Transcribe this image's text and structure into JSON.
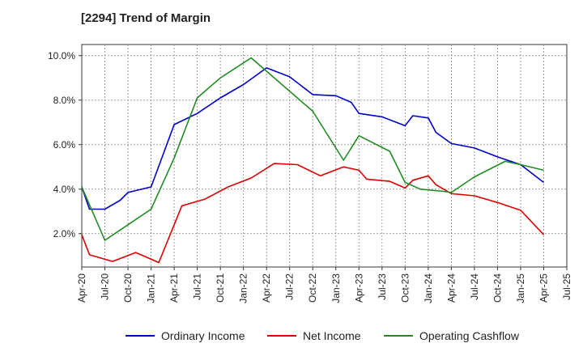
{
  "title": "[2294]  Trend of Margin",
  "chart_data": {
    "type": "line",
    "title": "[2294]  Trend of Margin",
    "xlabel": "",
    "ylabel": "",
    "x_tick_labels": [
      "Apr-20",
      "Jul-20",
      "Oct-20",
      "Jan-21",
      "Apr-21",
      "Jul-21",
      "Oct-21",
      "Jan-22",
      "Apr-22",
      "Jul-22",
      "Oct-22",
      "Jan-23",
      "Apr-23",
      "Jul-23",
      "Oct-23",
      "Jan-24",
      "Apr-24",
      "Jul-24",
      "Oct-24",
      "Jan-25",
      "Apr-25",
      "Jul-25"
    ],
    "x_range": [
      "Apr-20",
      "Jul-25"
    ],
    "y_tick_labels": [
      "2.0%",
      "4.0%",
      "6.0%",
      "8.0%",
      "10.0%"
    ],
    "ylim": [
      0.5,
      10.5
    ],
    "grid": true,
    "legend_position": "bottom",
    "series": [
      {
        "name": "Ordinary Income",
        "color": "#0000cc",
        "points": [
          [
            "Apr-20",
            4.1
          ],
          [
            "May-20",
            3.1
          ],
          [
            "Jul-20",
            3.1
          ],
          [
            "Sep-20",
            3.5
          ],
          [
            "Oct-20",
            3.85
          ],
          [
            "Jan-21",
            4.1
          ],
          [
            "Apr-21",
            6.9
          ],
          [
            "Jul-21",
            7.4
          ],
          [
            "Oct-21",
            8.1
          ],
          [
            "Jan-22",
            8.7
          ],
          [
            "Apr-22",
            9.45
          ],
          [
            "Jul-22",
            9.05
          ],
          [
            "Oct-22",
            8.25
          ],
          [
            "Jan-23",
            8.2
          ],
          [
            "Mar-23",
            7.9
          ],
          [
            "Apr-23",
            7.4
          ],
          [
            "Jul-23",
            7.25
          ],
          [
            "Oct-23",
            6.85
          ],
          [
            "Nov-23",
            7.3
          ],
          [
            "Jan-24",
            7.2
          ],
          [
            "Feb-24",
            6.55
          ],
          [
            "Apr-24",
            6.05
          ],
          [
            "Jul-24",
            5.85
          ],
          [
            "Oct-24",
            5.45
          ],
          [
            "Jan-25",
            5.1
          ],
          [
            "Apr-25",
            4.3
          ]
        ]
      },
      {
        "name": "Net Income",
        "color": "#dd0000",
        "points": [
          [
            "Apr-20",
            1.95
          ],
          [
            "May-20",
            1.05
          ],
          [
            "Aug-20",
            0.75
          ],
          [
            "Nov-20",
            1.15
          ],
          [
            "Feb-21",
            0.7
          ],
          [
            "May-21",
            3.25
          ],
          [
            "Aug-21",
            3.55
          ],
          [
            "Nov-21",
            4.1
          ],
          [
            "Feb-22",
            4.5
          ],
          [
            "May-22",
            5.15
          ],
          [
            "Aug-22",
            5.1
          ],
          [
            "Nov-22",
            4.6
          ],
          [
            "Feb-23",
            5.0
          ],
          [
            "Apr-23",
            4.85
          ],
          [
            "May-23",
            4.45
          ],
          [
            "Aug-23",
            4.35
          ],
          [
            "Oct-23",
            4.05
          ],
          [
            "Nov-23",
            4.4
          ],
          [
            "Jan-24",
            4.6
          ],
          [
            "Feb-24",
            4.2
          ],
          [
            "Apr-24",
            3.8
          ],
          [
            "Jul-24",
            3.7
          ],
          [
            "Oct-24",
            3.4
          ],
          [
            "Jan-25",
            3.05
          ],
          [
            "Apr-25",
            1.95
          ]
        ]
      },
      {
        "name": "Operating Cashflow",
        "color": "#228b22",
        "points": [
          [
            "Apr-20",
            4.1
          ],
          [
            "Jul-20",
            1.7
          ],
          [
            "Oct-20",
            2.4
          ],
          [
            "Jan-21",
            3.1
          ],
          [
            "Apr-21",
            5.4
          ],
          [
            "Jul-21",
            8.1
          ],
          [
            "Oct-21",
            9.0
          ],
          [
            "Feb-22",
            9.9
          ],
          [
            "Oct-22",
            7.5
          ],
          [
            "Feb-23",
            5.3
          ],
          [
            "Apr-23",
            6.4
          ],
          [
            "Aug-23",
            5.7
          ],
          [
            "Oct-23",
            4.3
          ],
          [
            "Dec-23",
            4.0
          ],
          [
            "Mar-24",
            3.9
          ],
          [
            "Apr-24",
            3.85
          ],
          [
            "Jul-24",
            4.55
          ],
          [
            "Nov-24",
            5.25
          ],
          [
            "Jan-25",
            5.1
          ],
          [
            "Apr-25",
            4.85
          ]
        ]
      }
    ]
  }
}
